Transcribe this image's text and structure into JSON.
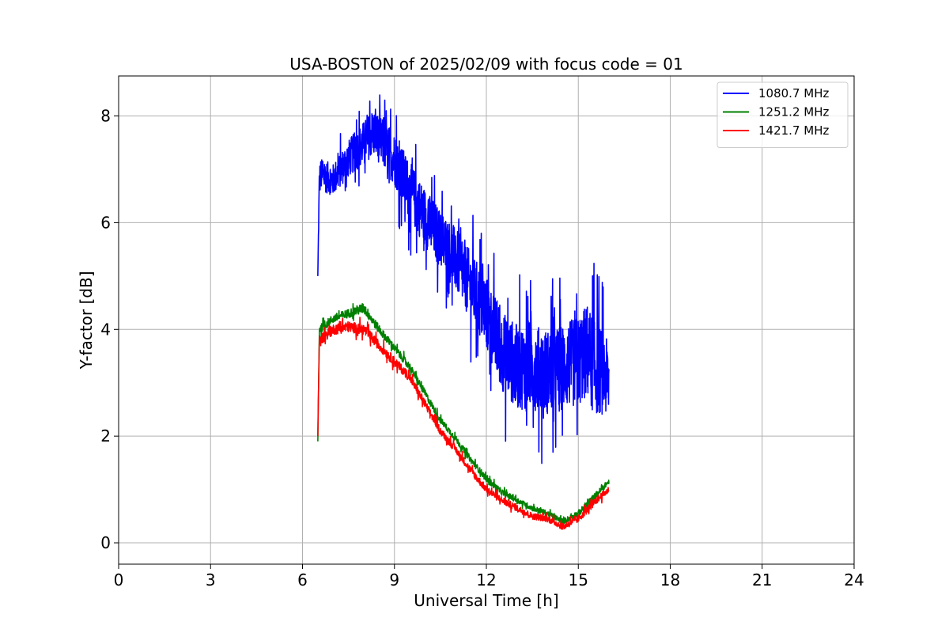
{
  "chart_data": {
    "type": "line",
    "title": "USA-BOSTON of 2025/02/09 with focus code = 01",
    "xlabel": "Universal Time [h]",
    "ylabel": "Y-factor [dB]",
    "xlim": [
      0,
      24
    ],
    "ylim": [
      -0.4,
      8.75
    ],
    "xticks": [
      0,
      3,
      6,
      9,
      12,
      15,
      18,
      21,
      24
    ],
    "yticks": [
      0,
      2,
      4,
      6,
      8
    ],
    "grid": true,
    "legend_position": "top-right",
    "series": [
      {
        "name": "1080.7 MHz",
        "color": "#0000ff",
        "x": [
          6.5,
          6.55,
          6.6,
          7.0,
          7.5,
          8.0,
          8.3,
          8.6,
          9.0,
          9.5,
          10.0,
          10.5,
          11.0,
          11.5,
          12.0,
          12.5,
          13.0,
          13.5,
          14.0,
          14.5,
          15.0,
          15.3,
          15.5,
          15.8,
          16.0
        ],
        "values": [
          5.0,
          6.8,
          6.9,
          6.8,
          7.2,
          7.5,
          7.7,
          7.5,
          7.2,
          6.6,
          6.1,
          5.7,
          5.3,
          4.8,
          4.3,
          3.6,
          3.3,
          3.3,
          3.2,
          3.3,
          3.4,
          3.6,
          3.3,
          3.2,
          3.0
        ],
        "noise": [
          0.0,
          0.3,
          0.3,
          0.3,
          0.35,
          0.4,
          0.45,
          0.45,
          0.5,
          0.55,
          0.55,
          0.55,
          0.6,
          0.65,
          0.7,
          0.75,
          0.8,
          0.8,
          0.8,
          0.8,
          0.85,
          0.9,
          0.9,
          0.8,
          0.7
        ]
      },
      {
        "name": "1251.2 MHz",
        "color": "#008000",
        "x": [
          6.5,
          6.55,
          7.0,
          7.5,
          8.0,
          8.5,
          9.0,
          9.5,
          10.0,
          10.5,
          11.0,
          11.5,
          12.0,
          12.5,
          13.0,
          13.5,
          14.0,
          14.5,
          15.0,
          15.5,
          16.0
        ],
        "values": [
          1.9,
          4.0,
          4.2,
          4.3,
          4.4,
          4.0,
          3.65,
          3.3,
          2.8,
          2.3,
          1.95,
          1.55,
          1.2,
          0.95,
          0.8,
          0.65,
          0.55,
          0.4,
          0.55,
          0.85,
          1.15
        ],
        "noise": [
          0.0,
          0.08,
          0.08,
          0.08,
          0.1,
          0.08,
          0.07,
          0.07,
          0.07,
          0.06,
          0.06,
          0.06,
          0.06,
          0.06,
          0.05,
          0.05,
          0.05,
          0.05,
          0.06,
          0.06,
          0.05
        ]
      },
      {
        "name": "1421.7 MHz",
        "color": "#ff0000",
        "x": [
          6.5,
          6.55,
          7.0,
          7.5,
          8.0,
          8.5,
          9.0,
          9.5,
          10.0,
          10.5,
          11.0,
          11.5,
          12.0,
          12.5,
          13.0,
          13.5,
          14.0,
          14.5,
          15.0,
          15.5,
          16.0
        ],
        "values": [
          2.0,
          3.8,
          4.0,
          4.05,
          4.0,
          3.7,
          3.4,
          3.1,
          2.6,
          2.1,
          1.75,
          1.35,
          1.0,
          0.8,
          0.65,
          0.5,
          0.45,
          0.3,
          0.45,
          0.75,
          1.0
        ],
        "noise": [
          0.0,
          0.1,
          0.1,
          0.1,
          0.1,
          0.09,
          0.09,
          0.08,
          0.08,
          0.07,
          0.07,
          0.07,
          0.07,
          0.07,
          0.06,
          0.06,
          0.06,
          0.06,
          0.07,
          0.07,
          0.06
        ]
      }
    ]
  }
}
